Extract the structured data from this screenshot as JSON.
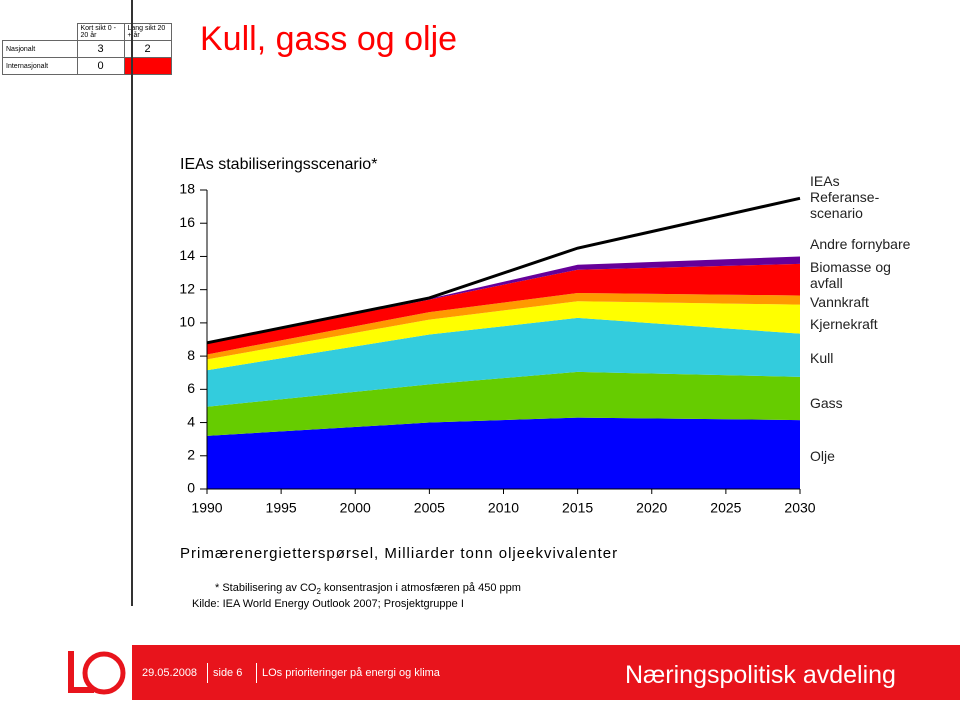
{
  "slide": {
    "title": "Kull, gass og olje",
    "header_table": {
      "columns": [
        "Kort sikt 0 - 20 år",
        "Lang sikt 20 + år"
      ],
      "rows": [
        {
          "label": "Nasjonalt",
          "values": [
            3,
            2
          ]
        },
        {
          "label": "Internasjonalt",
          "values": [
            0,
            null
          ]
        }
      ]
    },
    "footnote_parts": [
      "* Stabilisering av CO",
      "2",
      " konsentrasjon i atmosfæren på 450 ppm"
    ],
    "source": "Kilde: IEA World Energy Outlook 2007; Prosjektgruppe I",
    "footer": {
      "date": "29.05.2008",
      "page": "side 6",
      "topic": "LOs prioriteringer på energi og klima",
      "department": "Næringspolitisk avdeling"
    }
  },
  "chart_data": {
    "type": "stacked_area",
    "title": "IEAs stabiliseringsscenario*",
    "x_label": "Primærenergietterspørsel, Milliarder tonn oljeekvivalenter",
    "x": [
      1990,
      2005,
      2015,
      2030
    ],
    "xlim": [
      1990,
      2030
    ],
    "xticks": [
      1990,
      1995,
      2000,
      2005,
      2010,
      2015,
      2020,
      2025,
      2030
    ],
    "ylim": [
      0,
      18
    ],
    "yticks": [
      0,
      2,
      4,
      6,
      8,
      10,
      12,
      14,
      16,
      18
    ],
    "grid": false,
    "series": [
      {
        "name": "Olje",
        "color": "#0000ff",
        "values": [
          3.2,
          4.0,
          4.3,
          4.15
        ]
      },
      {
        "name": "Gass",
        "color": "#66cc00",
        "values": [
          1.75,
          2.3,
          2.75,
          2.6
        ]
      },
      {
        "name": "Kull",
        "color": "#33ccdd",
        "values": [
          2.2,
          3.0,
          3.25,
          2.6
        ]
      },
      {
        "name": "Kjernekraft",
        "color": "#ffff00",
        "values": [
          0.65,
          0.9,
          1.0,
          1.75
        ]
      },
      {
        "name": "Vannkraft",
        "color": "#ff9900",
        "values": [
          0.3,
          0.45,
          0.5,
          0.55
        ]
      },
      {
        "name": "Biomasse og avfall",
        "color": "#ff0000",
        "values": [
          0.7,
          0.75,
          1.4,
          1.9
        ]
      },
      {
        "name": "Andre fornybare",
        "color": "#660099",
        "values": [
          0,
          0.05,
          0.3,
          0.45
        ]
      }
    ],
    "reference_line": {
      "name": "IEAs Referanse-scenario",
      "color": "#000000",
      "values": [
        8.8,
        11.5,
        14.5,
        17.5
      ]
    }
  }
}
